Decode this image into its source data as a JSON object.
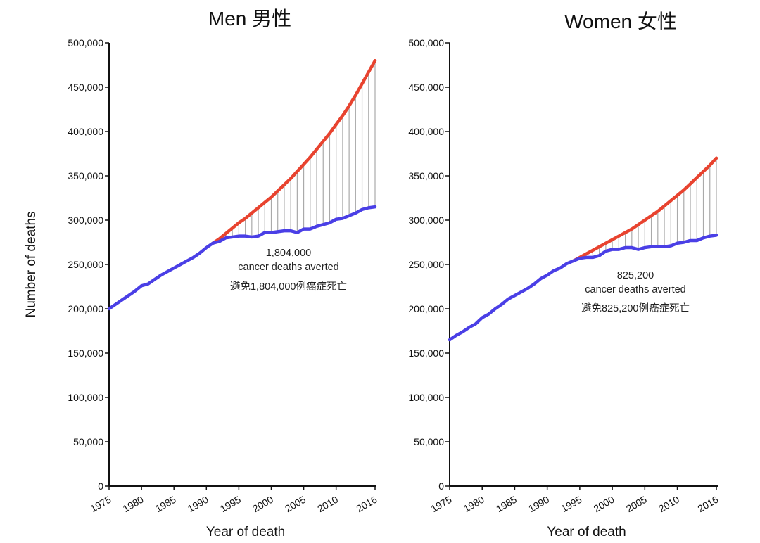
{
  "chart_data": [
    {
      "type": "line",
      "title": "Men 男性",
      "xlabel": "Year of death",
      "ylabel": "Number of deaths",
      "ylim": [
        0,
        500000
      ],
      "xlim": [
        1975,
        2016
      ],
      "yticks": [
        "0",
        "50,000",
        "100,000",
        "150,000",
        "200,000",
        "250,000",
        "300,000",
        "350,000",
        "400,000",
        "450,000",
        "500,000"
      ],
      "xticks": [
        "1975",
        "1980",
        "1985",
        "1990",
        "1995",
        "2000",
        "2005",
        "2010",
        "2016"
      ],
      "grid": false,
      "annotation": [
        "1,804,000",
        "cancer deaths averted",
        "避免1,804,000例癌症死亡"
      ],
      "series": [
        {
          "color": "#4a3fe6",
          "x_start": 1975,
          "values": [
            200000,
            205000,
            210000,
            215000,
            220000,
            226000,
            228000,
            233000,
            238000,
            242000,
            246000,
            250000,
            254000,
            258000,
            263000,
            269000,
            274000,
            276000,
            280000,
            281000,
            282000,
            282000,
            281000,
            282000,
            286000,
            286000,
            287000,
            288000,
            288000,
            286000,
            290000,
            290000,
            293000,
            295000,
            297000,
            301000,
            302000,
            305000,
            308000,
            312000,
            314000,
            315000
          ]
        },
        {
          "color": "#e8432f",
          "x_start": 1991,
          "values": [
            274000,
            279000,
            285000,
            291000,
            297000,
            302000,
            308000,
            314000,
            320000,
            326000,
            333000,
            340000,
            347000,
            355000,
            363000,
            371000,
            380000,
            389000,
            398000,
            408000,
            418000,
            429000,
            441000,
            454000,
            467000,
            480000
          ]
        }
      ]
    },
    {
      "type": "line",
      "title": "Women 女性",
      "xlabel": "Year of death",
      "ylabel": "",
      "ylim": [
        0,
        500000
      ],
      "xlim": [
        1975,
        2016
      ],
      "yticks": [
        "0",
        "50,000",
        "100,000",
        "150,000",
        "200,000",
        "250,000",
        "300,000",
        "350,000",
        "400,000",
        "450,000",
        "500,000"
      ],
      "xticks": [
        "1975",
        "1980",
        "1985",
        "1990",
        "1995",
        "2000",
        "2005",
        "2010",
        "2016"
      ],
      "grid": false,
      "annotation": [
        "825,200",
        "cancer deaths averted",
        "避免825,200例癌症死亡"
      ],
      "series": [
        {
          "color": "#4a3fe6",
          "x_start": 1975,
          "values": [
            165000,
            170000,
            174000,
            179000,
            183000,
            190000,
            194000,
            200000,
            205000,
            211000,
            215000,
            219000,
            223000,
            228000,
            234000,
            238000,
            243000,
            246000,
            251000,
            254000,
            257000,
            258000,
            258000,
            260000,
            265000,
            267000,
            267000,
            269000,
            269000,
            267000,
            269000,
            270000,
            270000,
            270000,
            271000,
            274000,
            275000,
            277000,
            277000,
            280000,
            282000,
            283000
          ]
        },
        {
          "color": "#e8432f",
          "x_start": 1994,
          "values": [
            254000,
            258000,
            262000,
            266000,
            270000,
            274000,
            278000,
            282000,
            286000,
            290000,
            295000,
            300000,
            305000,
            310000,
            316000,
            322000,
            328000,
            334000,
            341000,
            348000,
            355000,
            362000,
            370000
          ]
        }
      ]
    }
  ]
}
